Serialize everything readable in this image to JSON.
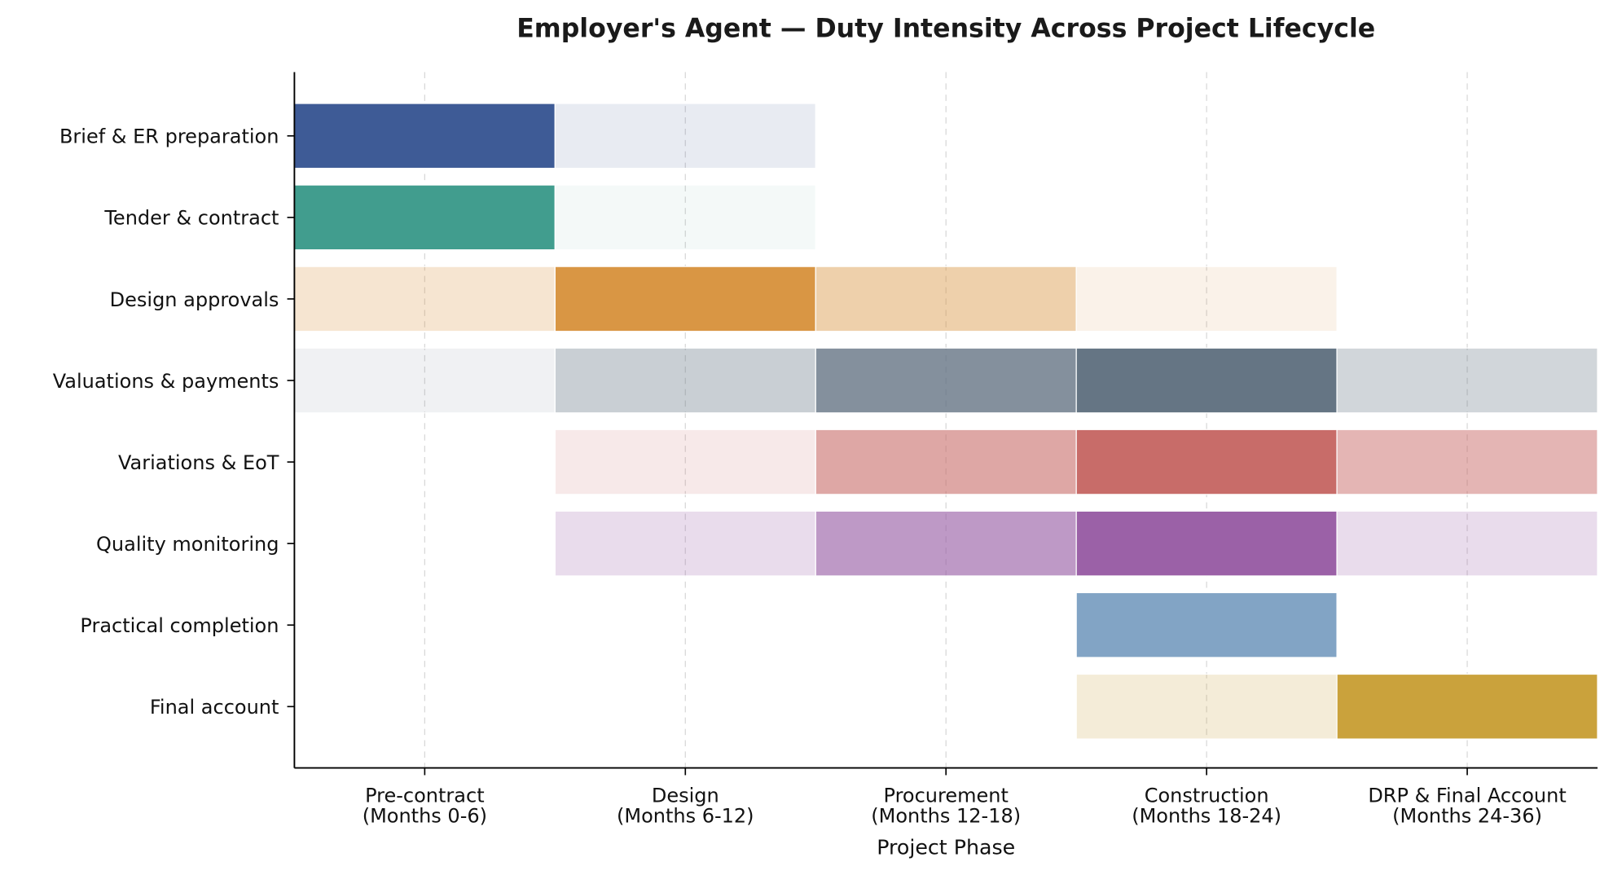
{
  "chart_data": {
    "type": "heatmap",
    "title": "Employer's Agent — Duty Intensity Across Project Lifecycle",
    "xlabel": "Project Phase",
    "ylabel": "",
    "grid": "vertical dashed",
    "x_categories": [
      [
        "Pre-contract",
        "(Months 0-6)"
      ],
      [
        "Design",
        "(Months 6-12)"
      ],
      [
        "Procurement",
        "(Months 12-18)"
      ],
      [
        "Construction",
        "(Months 18-24)"
      ],
      [
        "DRP & Final Account",
        "(Months 24-36)"
      ]
    ],
    "rows": [
      {
        "label": "Brief & ER preparation",
        "color": "#3a5894",
        "intensity": [
          1.0,
          0.12,
          0,
          0,
          0
        ]
      },
      {
        "label": "Tender & contract",
        "color": "#3d9b8c",
        "intensity": [
          1.0,
          0.06,
          0,
          0,
          0
        ]
      },
      {
        "label": "Design approvals",
        "color": "#d89440",
        "intensity": [
          0.25,
          1.0,
          0.45,
          0.12,
          0
        ]
      },
      {
        "label": "Valuations & payments",
        "color": "#627282",
        "intensity": [
          0.1,
          0.35,
          0.8,
          1.0,
          0.3
        ]
      },
      {
        "label": "Variations & EoT",
        "color": "#c76966",
        "intensity": [
          0,
          0.15,
          0.6,
          1.0,
          0.5
        ]
      },
      {
        "label": "Quality monitoring",
        "color": "#995ea5",
        "intensity": [
          0,
          0.22,
          0.65,
          1.0,
          0.22
        ]
      },
      {
        "label": "Practical completion",
        "color": "#80a2c4",
        "intensity": [
          0,
          0,
          0,
          1.0,
          0
        ]
      },
      {
        "label": "Final account",
        "color": "#c9a038",
        "intensity": [
          0,
          0,
          0,
          0.2,
          1.0
        ]
      }
    ]
  }
}
